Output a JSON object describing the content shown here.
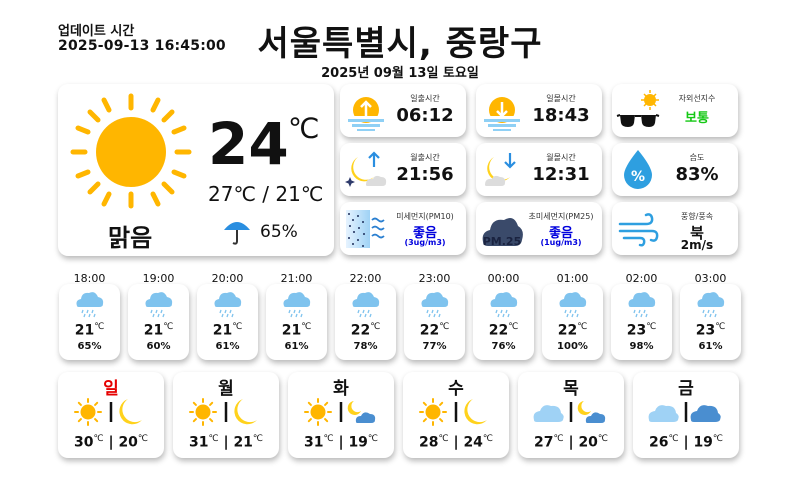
{
  "header": {
    "update_label": "업데이트 시간",
    "update_time": "2025-09-13 16:45:00",
    "location": "서울특별시, 중랑구",
    "date": "2025년 09월 13일 토요일"
  },
  "current": {
    "icon": "sun-icon",
    "temp": "24",
    "unit": "℃",
    "hilo": "27℃ / 21℃",
    "condition": "맑음",
    "precip_icon": "umbrella-icon",
    "precip": "65%"
  },
  "info": [
    {
      "icon": "sunrise-icon",
      "title": "일출시간",
      "value": "06:12"
    },
    {
      "icon": "sunset-icon",
      "title": "일몰시간",
      "value": "18:43"
    },
    {
      "icon": "uv-sunglasses-icon",
      "title": "자외선지수",
      "value": "보통"
    },
    {
      "icon": "moonrise-icon",
      "title": "월출시간",
      "value": "21:56"
    },
    {
      "icon": "moonset-icon",
      "title": "월몰시간",
      "value": "12:31"
    },
    {
      "icon": "humidity-drop-icon",
      "title": "습도",
      "value": "83%"
    },
    {
      "icon": "fine-dust-icon",
      "title": "미세먼지(PM10)",
      "value": "좋음",
      "sub": "(3ug/m3)"
    },
    {
      "icon": "ultrafine-dust-icon",
      "title": "초미세먼지(PM25)",
      "value": "좋음",
      "sub": "(1ug/m3)",
      "icon_text": "PM.25"
    },
    {
      "icon": "wind-icon",
      "title": "풍향/풍속",
      "value": "북",
      "sub": "2m/s"
    }
  ],
  "colors": {
    "sun": "#ffb600",
    "cloud": "#7fc3ee",
    "good": "#14c814",
    "dust": "#0000dd",
    "sunday": "#e60000"
  },
  "hourly": [
    {
      "time": "18:00",
      "icon": "rain-cloud-icon",
      "temp": "21",
      "pop": "65%"
    },
    {
      "time": "19:00",
      "icon": "rain-cloud-icon",
      "temp": "21",
      "pop": "60%"
    },
    {
      "time": "20:00",
      "icon": "rain-cloud-icon",
      "temp": "21",
      "pop": "61%"
    },
    {
      "time": "21:00",
      "icon": "rain-cloud-icon",
      "temp": "21",
      "pop": "61%"
    },
    {
      "time": "22:00",
      "icon": "rain-cloud-icon",
      "temp": "22",
      "pop": "78%"
    },
    {
      "time": "23:00",
      "icon": "rain-cloud-icon",
      "temp": "22",
      "pop": "77%"
    },
    {
      "time": "00:00",
      "icon": "rain-cloud-icon",
      "temp": "22",
      "pop": "76%"
    },
    {
      "time": "01:00",
      "icon": "rain-cloud-icon",
      "temp": "22",
      "pop": "100%"
    },
    {
      "time": "02:00",
      "icon": "rain-cloud-icon",
      "temp": "23",
      "pop": "98%"
    },
    {
      "time": "03:00",
      "icon": "rain-cloud-icon",
      "temp": "23",
      "pop": "61%"
    }
  ],
  "weekly": [
    {
      "day": "일",
      "am": "sun-icon",
      "pm": "moon-icon",
      "high": "30",
      "low": "20"
    },
    {
      "day": "월",
      "am": "sun-icon",
      "pm": "moon-icon",
      "high": "31",
      "low": "21"
    },
    {
      "day": "화",
      "am": "sun-icon",
      "pm": "moon-cloud-icon",
      "high": "31",
      "low": "19"
    },
    {
      "day": "수",
      "am": "sun-icon",
      "pm": "moon-icon",
      "high": "28",
      "low": "24"
    },
    {
      "day": "목",
      "am": "cloud-icon",
      "pm": "moon-cloud-icon",
      "high": "27",
      "low": "20"
    },
    {
      "day": "금",
      "am": "cloud-icon",
      "pm": "cloud-icon",
      "high": "26",
      "low": "19"
    }
  ],
  "temp_unit": "℃",
  "separator": "|"
}
